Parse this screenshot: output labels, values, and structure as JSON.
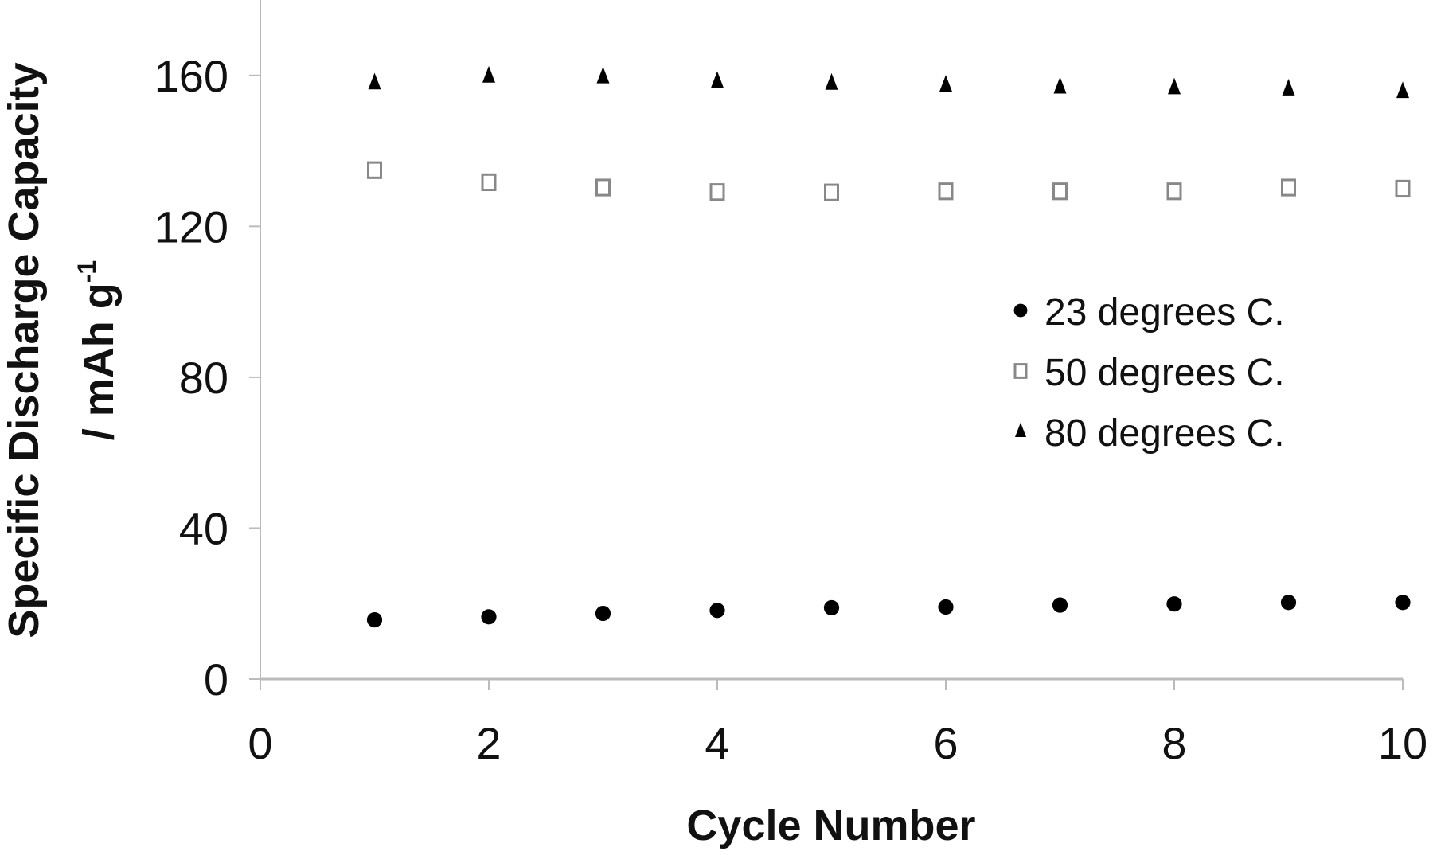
{
  "chart_data": {
    "type": "scatter",
    "xlabel": "Cycle Number",
    "ylabel": "Specific Discharge Capacity",
    "ylabel2": "/ mAh g",
    "ylabel2_sup": "-1",
    "xlim": [
      0,
      10
    ],
    "ylim": [
      0,
      180
    ],
    "xticks": [
      0,
      2,
      4,
      6,
      8,
      10
    ],
    "yticks": [
      0,
      40,
      80,
      120,
      160
    ],
    "grid": false,
    "legend_position": "right",
    "x": [
      1,
      2,
      3,
      4,
      5,
      6,
      7,
      8,
      9,
      10
    ],
    "series": [
      {
        "name": "23 degrees C.",
        "marker": "circle-filled",
        "color": "#000000",
        "values": [
          15.7,
          16.5,
          17.4,
          18.2,
          18.9,
          19.1,
          19.6,
          19.9,
          20.3,
          20.3
        ]
      },
      {
        "name": "50 degrees C.",
        "marker": "square-open",
        "color": "#888888",
        "values": [
          134.9,
          131.7,
          130.3,
          129.1,
          129.0,
          129.3,
          129.3,
          129.3,
          130.3,
          130.0
        ]
      },
      {
        "name": "80 degrees C.",
        "marker": "triangle-filled",
        "color": "#000000",
        "values": [
          158.0,
          159.8,
          159.6,
          158.4,
          157.9,
          157.4,
          156.9,
          156.7,
          156.4,
          155.7
        ]
      }
    ]
  }
}
